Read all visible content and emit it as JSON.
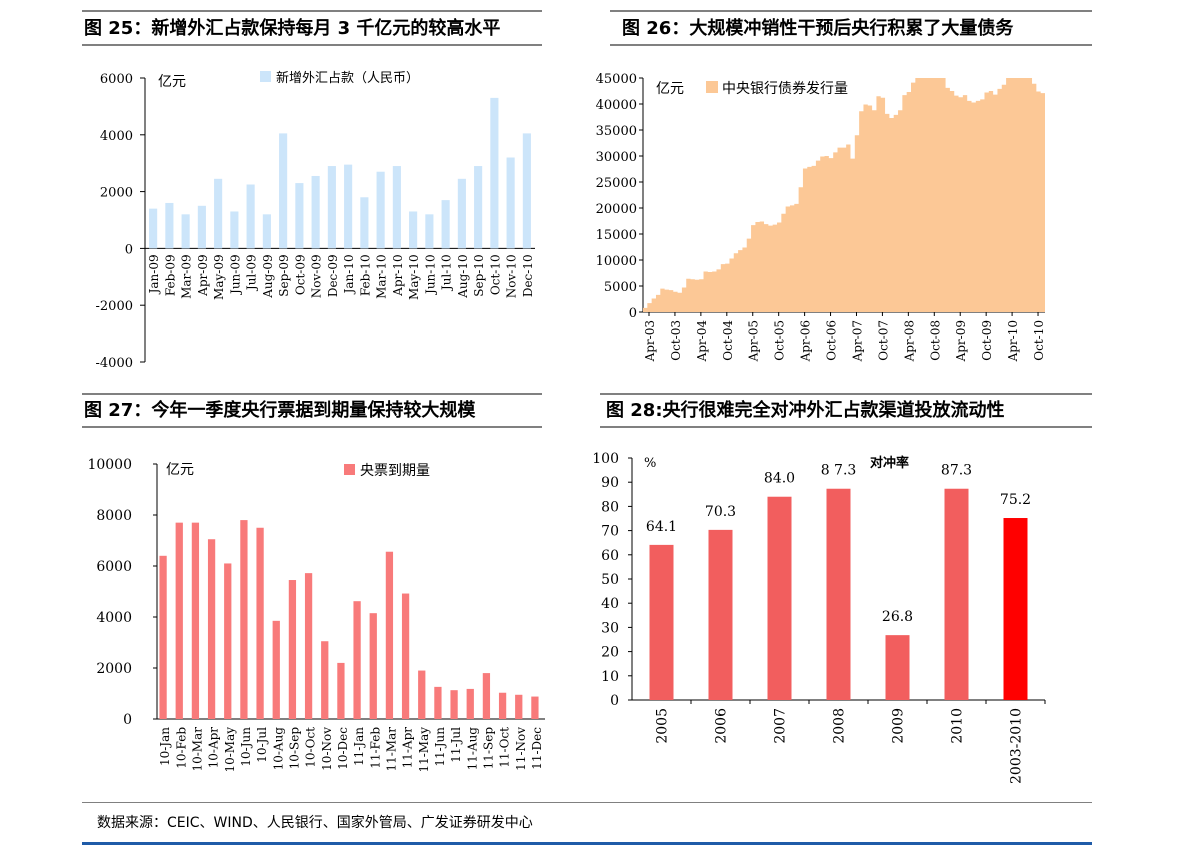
{
  "panels": {
    "p25": {
      "title": "图 25：新增外汇占款保持每月 3 千亿元的较高水平"
    },
    "p26": {
      "title": "图 26：大规模冲销性干预后央行积累了大量债务"
    },
    "p27": {
      "title": "图 27：今年一季度央行票据到期量保持较大规模"
    },
    "p28": {
      "title": "图 28:央行很难完全对冲外汇占款渠道投放流动性"
    }
  },
  "footer": {
    "source": "数据来源：CEIC、WIND、人民银行、国家外管局、广发证券研发中心"
  },
  "colors": {
    "light_blue": "#cce5fa",
    "peach": "#fcc896",
    "salmon": "#f87a7a",
    "red_bar": "#f25e5e",
    "highlight": "#ff0000",
    "accent_line": "#1f5ba8"
  },
  "chart_data": [
    {
      "id": "fx_new",
      "type": "bar",
      "unit_label": "亿元",
      "legend": "新增外汇占款（人民币）",
      "categories": [
        "Jan-09",
        "Feb-09",
        "Mar-09",
        "Apr-09",
        "May-09",
        "Jun-09",
        "Jul-09",
        "Aug-09",
        "Sep-09",
        "Oct-09",
        "Nov-09",
        "Dec-09",
        "Jan-10",
        "Feb-10",
        "Mar-10",
        "Apr-10",
        "May-10",
        "Jun-10",
        "Jul-10",
        "Aug-10",
        "Sep-10",
        "Oct-10",
        "Nov-10",
        "Dec-10"
      ],
      "values": [
        1400,
        1600,
        1200,
        1500,
        2450,
        1300,
        2250,
        1200,
        4050,
        2300,
        2550,
        2900,
        2950,
        1800,
        2700,
        2900,
        1300,
        1200,
        1700,
        2450,
        2900,
        5300,
        3200,
        4050
      ],
      "ylim": [
        -4000,
        6000
      ],
      "yticks": [
        -4000,
        -2000,
        0,
        2000,
        4000,
        6000
      ]
    },
    {
      "id": "cb_debt",
      "type": "area",
      "unit_label": "亿元",
      "legend": "中央银行债券发行量",
      "start_month": "Apr-03",
      "xticks": [
        "Apr-03",
        "Oct-03",
        "Apr-04",
        "Oct-04",
        "Apr-05",
        "Oct-05",
        "Apr-06",
        "Oct-06",
        "Apr-07",
        "Oct-07",
        "Apr-08",
        "Oct-08",
        "Apr-09",
        "Oct-09",
        "Apr-10",
        "Oct-10"
      ],
      "values": [
        800,
        1700,
        2600,
        3300,
        4500,
        4300,
        4200,
        3900,
        3700,
        4700,
        6400,
        6300,
        6200,
        6300,
        7800,
        7700,
        7800,
        8200,
        9200,
        9300,
        10300,
        11300,
        11900,
        12400,
        14100,
        16700,
        17300,
        17400,
        16900,
        16600,
        16800,
        17200,
        18900,
        20300,
        20500,
        20800,
        24000,
        27600,
        27900,
        28100,
        29100,
        29900,
        30000,
        29600,
        30700,
        31600,
        31600,
        32200,
        29500,
        34000,
        38600,
        39900,
        39700,
        38800,
        41500,
        41200,
        38100,
        37300,
        37900,
        38800,
        41700,
        42300,
        44100,
        45200,
        46400,
        46500,
        46100,
        45100,
        45400,
        45100,
        43100,
        42500,
        41600,
        41300,
        41700,
        40600,
        40300,
        40600,
        40900,
        42200,
        42500,
        41800,
        42900,
        43700,
        45100,
        46200,
        46000,
        45800,
        45300,
        45500,
        43900,
        42400,
        42100
      ],
      "ylim": [
        0,
        45000
      ],
      "yticks": [
        0,
        5000,
        10000,
        15000,
        20000,
        25000,
        30000,
        35000,
        40000,
        45000
      ]
    },
    {
      "id": "bills_due",
      "type": "bar",
      "unit_label": "亿元",
      "legend": "央票到期量",
      "categories": [
        "10-Jan",
        "10-Feb",
        "10-Mar",
        "10-Apr",
        "10-May",
        "10-Jun",
        "10-Jul",
        "10-Aug",
        "10-Sep",
        "10-Oct",
        "10-Nov",
        "10-Dec",
        "11-Jan",
        "11-Feb",
        "11-Mar",
        "11-Apr",
        "11-May",
        "11-Jun",
        "11-Jul",
        "11-Aug",
        "11-Sep",
        "11-Oct",
        "11-Nov",
        "11-Dec"
      ],
      "values": [
        6400,
        7700,
        7700,
        7050,
        6100,
        7800,
        7500,
        3850,
        5450,
        5720,
        3050,
        2200,
        4620,
        4150,
        6560,
        4920,
        1900,
        1260,
        1130,
        1180,
        1800,
        1030,
        950,
        880
      ],
      "ylim": [
        0,
        10000
      ],
      "yticks": [
        0,
        2000,
        4000,
        6000,
        8000,
        10000
      ]
    },
    {
      "id": "sterilization",
      "type": "bar",
      "unit_label": "%",
      "legend": "对冲率",
      "categories": [
        "2005",
        "2006",
        "2007",
        "2008",
        "2009",
        "2010",
        "2003-2010"
      ],
      "values": [
        64.1,
        70.3,
        84.0,
        87.3,
        26.8,
        87.3,
        75.2
      ],
      "labels": [
        "64.1",
        "70.3",
        "84.0",
        "8 7.3",
        "26.8",
        "87.3",
        "75.2"
      ],
      "ylim": [
        0,
        100
      ],
      "yticks": [
        0,
        10,
        20,
        30,
        40,
        50,
        60,
        70,
        80,
        90,
        100
      ]
    }
  ]
}
